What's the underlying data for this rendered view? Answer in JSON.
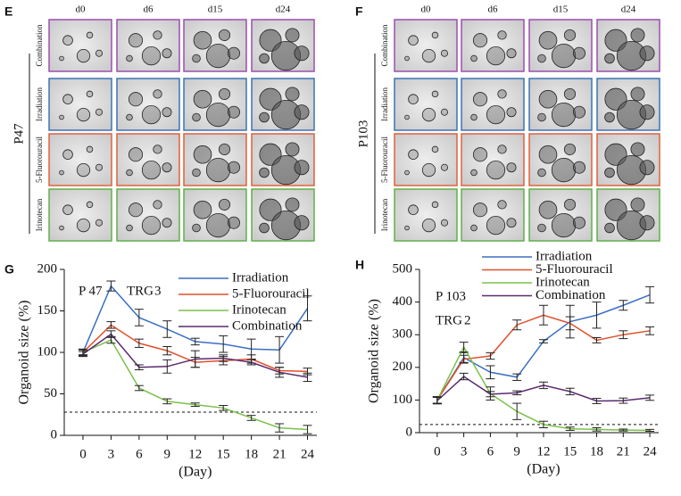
{
  "image_panels": [
    {
      "label": "E",
      "patient": "P47",
      "columns": [
        "d0",
        "d6",
        "d15",
        "d24"
      ],
      "rows": [
        {
          "name": "Combination",
          "color": "#9b4fb0"
        },
        {
          "name": "Irradiation",
          "color": "#3b73b9"
        },
        {
          "name": "5-Fluorouracil",
          "color": "#e0603a"
        },
        {
          "name": "Irinotecan",
          "color": "#5fb04a"
        }
      ]
    },
    {
      "label": "F",
      "patient": "P103",
      "columns": [
        "d0",
        "d6",
        "d15",
        "d24"
      ],
      "rows": [
        {
          "name": "Combination",
          "color": "#9b4fb0"
        },
        {
          "name": "Irradiation",
          "color": "#3b73b9"
        },
        {
          "name": "5-Fluorouracil",
          "color": "#e0603a"
        },
        {
          "name": "Irinotecan",
          "color": "#5fb04a"
        }
      ]
    }
  ],
  "chart_data": [
    {
      "type": "line",
      "panel_label": "G",
      "subject": "P 47",
      "grade_label": "TRG",
      "grade": "3",
      "grade_color": "#e02020",
      "x_label": "(Day)",
      "y_label": "Organoid size (%)",
      "x": [
        0,
        3,
        6,
        9,
        12,
        15,
        18,
        21,
        24
      ],
      "xlim": [
        -2,
        25
      ],
      "xticks": [
        0,
        3,
        6,
        9,
        12,
        15,
        18,
        21,
        24
      ],
      "ylim": [
        0,
        200
      ],
      "yticks": [
        0,
        50,
        100,
        150,
        200
      ],
      "reference_line": 28,
      "series": [
        {
          "name": "Irradiation",
          "color": "#3a6fc4",
          "values": [
            100,
            180,
            142,
            128,
            113,
            110,
            104,
            103,
            153
          ],
          "errors": [
            4,
            6,
            10,
            10,
            4,
            10,
            12,
            16,
            15
          ]
        },
        {
          "name": "5-Fluorouracil",
          "color": "#e0502a",
          "values": [
            100,
            133,
            111,
            102,
            88,
            90,
            92,
            78,
            77
          ],
          "errors": [
            3,
            4,
            5,
            5,
            6,
            5,
            5,
            4,
            4
          ]
        },
        {
          "name": "Irinotecan",
          "color": "#7cc04a",
          "values": [
            100,
            115,
            57,
            41,
            37,
            33,
            21,
            9,
            7
          ],
          "errors": [
            3,
            4,
            3,
            3,
            2,
            3,
            3,
            5,
            5
          ]
        },
        {
          "name": "Combination",
          "color": "#5b2a6e",
          "values": [
            98,
            122,
            82,
            83,
            92,
            93,
            88,
            76,
            70
          ],
          "errors": [
            3,
            4,
            3,
            8,
            10,
            4,
            3,
            6,
            5
          ]
        }
      ]
    },
    {
      "type": "line",
      "panel_label": "H",
      "subject": "P 103",
      "grade_label": "TRG",
      "grade": "2",
      "grade_color": "#e02020",
      "x_label": "(Day)",
      "y_label": "Organoid size (%)",
      "x": [
        0,
        3,
        6,
        9,
        12,
        15,
        18,
        21,
        24
      ],
      "xlim": [
        -2,
        25
      ],
      "xticks": [
        0,
        3,
        6,
        9,
        12,
        15,
        18,
        21,
        24
      ],
      "ylim": [
        0,
        500
      ],
      "yticks": [
        0,
        100,
        200,
        300,
        400,
        500
      ],
      "reference_line": 25,
      "series": [
        {
          "name": "Irradiation",
          "color": "#3a6fc4",
          "values": [
            100,
            230,
            185,
            170,
            280,
            340,
            360,
            390,
            422
          ],
          "errors": [
            10,
            15,
            20,
            10,
            5,
            50,
            40,
            15,
            25
          ]
        },
        {
          "name": "5-Fluorouracil",
          "color": "#e0502a",
          "values": [
            100,
            225,
            235,
            330,
            360,
            335,
            283,
            300,
            312
          ],
          "errors": [
            10,
            12,
            10,
            15,
            30,
            20,
            8,
            12,
            12
          ]
        },
        {
          "name": "Irinotecan",
          "color": "#7cc04a",
          "values": [
            100,
            262,
            120,
            65,
            25,
            12,
            10,
            8,
            7
          ],
          "errors": [
            10,
            15,
            20,
            25,
            10,
            5,
            5,
            3,
            3
          ]
        },
        {
          "name": "Combination",
          "color": "#5b2a6e",
          "values": [
            98,
            172,
            118,
            122,
            145,
            126,
            97,
            98,
            107
          ],
          "errors": [
            10,
            10,
            8,
            6,
            10,
            10,
            8,
            8,
            8
          ]
        }
      ]
    }
  ]
}
